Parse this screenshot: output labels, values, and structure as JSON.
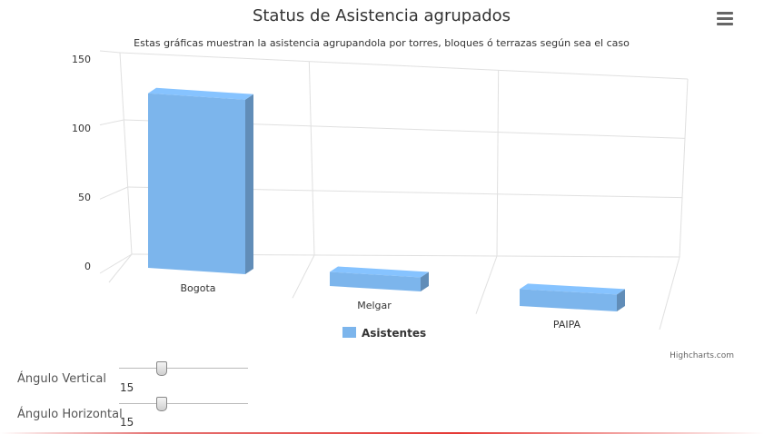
{
  "chart_data": {
    "type": "bar",
    "title": "Status de Asistencia agrupados",
    "subtitle": "Estas gráficas muestran la asistencia agrupandola por torres, bloques ó terrazas según sea el caso",
    "categories": [
      "Bogota",
      "Melgar",
      "PAIPA"
    ],
    "series": [
      {
        "name": "Asistentes",
        "values": [
          124,
          10,
          12
        ],
        "color": "#7cb5ec"
      }
    ],
    "ylim": [
      0,
      150
    ],
    "yticks": [
      0,
      50,
      100,
      150
    ],
    "xlabel": "",
    "ylabel": "",
    "grid": true,
    "legend": "bottom-center",
    "three_d": true,
    "credits": "Highcharts.com"
  },
  "controls": {
    "vertical_label": "Ángulo Vertical",
    "vertical_value": "15",
    "horizontal_label": "Ángulo Horizontal",
    "horizontal_value": "15",
    "slider_min": 0,
    "slider_max": 45
  },
  "icons": {
    "menu": "hamburger-menu-icon"
  }
}
